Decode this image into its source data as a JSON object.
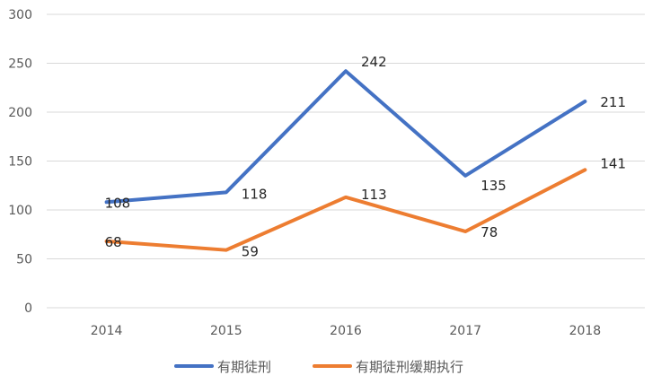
{
  "chart_data": {
    "type": "line",
    "title": "",
    "xlabel": "",
    "ylabel": "",
    "categories": [
      "2014",
      "2015",
      "2016",
      "2017",
      "2018"
    ],
    "ylim": [
      0,
      300
    ],
    "yticks": [
      0,
      50,
      100,
      150,
      200,
      250,
      300
    ],
    "grid": true,
    "legend_position": "bottom",
    "series": [
      {
        "name": "有期徒刑",
        "values": [
          108,
          118,
          242,
          135,
          211
        ],
        "color": "#4472C4"
      },
      {
        "name": "有期徒刑缓期执行",
        "values": [
          68,
          59,
          113,
          78,
          141
        ],
        "color": "#ED7D31"
      }
    ]
  }
}
